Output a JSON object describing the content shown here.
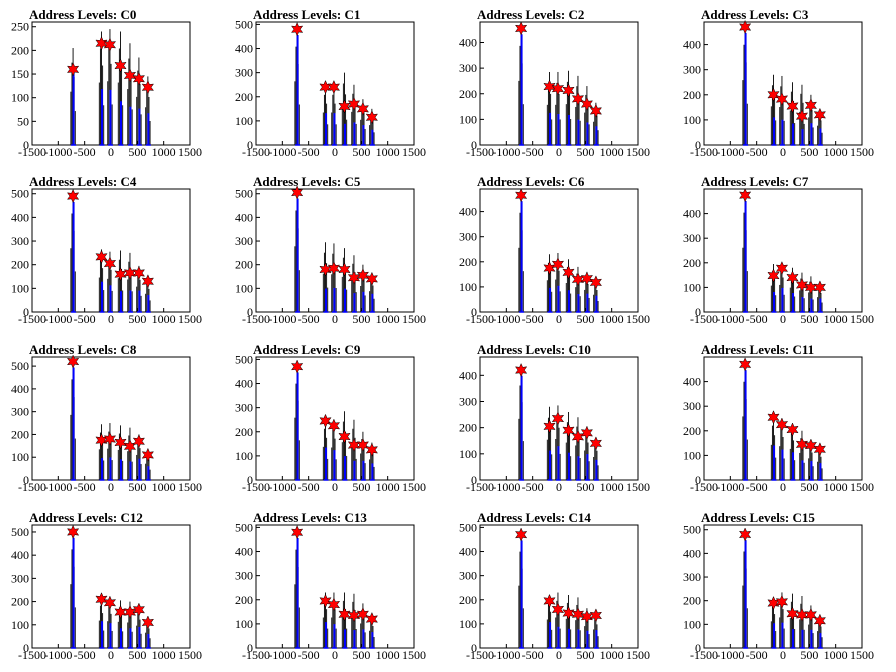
{
  "colors": {
    "histogram": "#000000",
    "fit": "#0000ff",
    "peak_marker": "#ff0000",
    "frame": "#000000"
  },
  "chart_data": [
    {
      "type": "bar",
      "title": "Address Levels: C0",
      "xlim": [
        -1500,
        1500
      ],
      "ylim": [
        0,
        260
      ],
      "yticks": [
        0,
        50,
        100,
        150,
        200,
        250
      ],
      "xticks": [
        -1500,
        -1000,
        -500,
        0,
        500,
        1000,
        1500
      ],
      "xtick_labels": [
        "-1500",
        "-1000",
        "-500",
        "0",
        "500",
        "1000",
        "1500"
      ],
      "peaks": [
        {
          "x": -720,
          "y": 160
        },
        {
          "x": -180,
          "y": 215
        },
        {
          "x": -20,
          "y": 212
        },
        {
          "x": 180,
          "y": 168
        },
        {
          "x": 360,
          "y": 147
        },
        {
          "x": 530,
          "y": 140
        },
        {
          "x": 700,
          "y": 122
        }
      ],
      "histogram_peaks": [
        205,
        240,
        245,
        240,
        215,
        185,
        145
      ]
    },
    {
      "type": "bar",
      "title": "Address Levels: C1",
      "xlim": [
        -1500,
        1500
      ],
      "ylim": [
        0,
        510
      ],
      "yticks": [
        0,
        100,
        200,
        300,
        400,
        500
      ],
      "xticks": [
        -1500,
        -1000,
        -500,
        0,
        500,
        1000,
        1500
      ],
      "xtick_labels": [
        "-1500",
        "-1000",
        "-500",
        "0",
        "500",
        "1000",
        "1500"
      ],
      "peaks": [
        {
          "x": -720,
          "y": 480
        },
        {
          "x": -180,
          "y": 240
        },
        {
          "x": -20,
          "y": 240
        },
        {
          "x": 180,
          "y": 160
        },
        {
          "x": 360,
          "y": 170
        },
        {
          "x": 530,
          "y": 150
        },
        {
          "x": 700,
          "y": 115
        }
      ],
      "histogram_peaks": [
        480,
        245,
        245,
        300,
        250,
        190,
        150
      ]
    },
    {
      "type": "bar",
      "title": "Address Levels: C2",
      "xlim": [
        -1500,
        1500
      ],
      "ylim": [
        0,
        480
      ],
      "yticks": [
        0,
        100,
        200,
        300,
        400
      ],
      "xticks": [
        -1500,
        -1000,
        -500,
        0,
        500,
        1000,
        1500
      ],
      "xtick_labels": [
        "-1500",
        "-1000",
        "-500",
        "0",
        "500",
        "1000",
        "1500"
      ],
      "peaks": [
        {
          "x": -720,
          "y": 455
        },
        {
          "x": -180,
          "y": 228
        },
        {
          "x": -20,
          "y": 220
        },
        {
          "x": 180,
          "y": 213
        },
        {
          "x": 360,
          "y": 180
        },
        {
          "x": 530,
          "y": 160
        },
        {
          "x": 700,
          "y": 133
        }
      ],
      "histogram_peaks": [
        455,
        285,
        285,
        290,
        270,
        230,
        165
      ]
    },
    {
      "type": "bar",
      "title": "Address Levels: C3",
      "xlim": [
        -1500,
        1500
      ],
      "ylim": [
        0,
        490
      ],
      "yticks": [
        0,
        100,
        200,
        300,
        400
      ],
      "xticks": [
        -1500,
        -1000,
        -500,
        0,
        500,
        1000,
        1500
      ],
      "xtick_labels": [
        "-1500",
        "-1000",
        "-500",
        "0",
        "500",
        "1000",
        "1500"
      ],
      "peaks": [
        {
          "x": -720,
          "y": 470
        },
        {
          "x": -180,
          "y": 200
        },
        {
          "x": -20,
          "y": 183
        },
        {
          "x": 180,
          "y": 155
        },
        {
          "x": 360,
          "y": 115
        },
        {
          "x": 530,
          "y": 158
        },
        {
          "x": 700,
          "y": 120
        }
      ],
      "histogram_peaks": [
        470,
        280,
        275,
        250,
        240,
        200,
        140
      ]
    },
    {
      "type": "bar",
      "title": "Address Levels: C4",
      "xlim": [
        -1500,
        1500
      ],
      "ylim": [
        0,
        520
      ],
      "yticks": [
        0,
        100,
        200,
        300,
        400,
        500
      ],
      "xticks": [
        -1500,
        -1000,
        -500,
        0,
        500,
        1000,
        1500
      ],
      "xtick_labels": [
        "-1500",
        "-1000",
        "-500",
        "0",
        "500",
        "1000",
        "1500"
      ],
      "peaks": [
        {
          "x": -720,
          "y": 490
        },
        {
          "x": -180,
          "y": 233
        },
        {
          "x": -20,
          "y": 205
        },
        {
          "x": 180,
          "y": 160
        },
        {
          "x": 360,
          "y": 165
        },
        {
          "x": 530,
          "y": 165
        },
        {
          "x": 700,
          "y": 130
        }
      ],
      "histogram_peaks": [
        490,
        265,
        255,
        260,
        250,
        195,
        140
      ]
    },
    {
      "type": "bar",
      "title": "Address Levels: C5",
      "xlim": [
        -1500,
        1500
      ],
      "ylim": [
        0,
        520
      ],
      "yticks": [
        0,
        100,
        200,
        300,
        400,
        500
      ],
      "xticks": [
        -1500,
        -1000,
        -500,
        0,
        500,
        1000,
        1500
      ],
      "xtick_labels": [
        "-1500",
        "-1000",
        "-500",
        "0",
        "500",
        "1000",
        "1500"
      ],
      "peaks": [
        {
          "x": -720,
          "y": 505
        },
        {
          "x": -180,
          "y": 180
        },
        {
          "x": -20,
          "y": 185
        },
        {
          "x": 180,
          "y": 180
        },
        {
          "x": 360,
          "y": 145
        },
        {
          "x": 530,
          "y": 155
        },
        {
          "x": 700,
          "y": 140
        }
      ],
      "histogram_peaks": [
        505,
        295,
        290,
        270,
        240,
        200,
        160
      ]
    },
    {
      "type": "bar",
      "title": "Address Levels: C6",
      "xlim": [
        -1500,
        1500
      ],
      "ylim": [
        0,
        490
      ],
      "yticks": [
        0,
        100,
        200,
        300,
        400
      ],
      "xticks": [
        -1500,
        -1000,
        -500,
        0,
        500,
        1000,
        1500
      ],
      "xtick_labels": [
        "-1500",
        "-1000",
        "-500",
        "0",
        "500",
        "1000",
        "1500"
      ],
      "peaks": [
        {
          "x": -720,
          "y": 465
        },
        {
          "x": -180,
          "y": 175
        },
        {
          "x": -20,
          "y": 190
        },
        {
          "x": 180,
          "y": 158
        },
        {
          "x": 360,
          "y": 130
        },
        {
          "x": 530,
          "y": 133
        },
        {
          "x": 700,
          "y": 118
        }
      ],
      "histogram_peaks": [
        465,
        230,
        235,
        210,
        180,
        160,
        125
      ]
    },
    {
      "type": "bar",
      "title": "Address Levels: C7",
      "xlim": [
        -1500,
        1500
      ],
      "ylim": [
        0,
        500
      ],
      "yticks": [
        0,
        100,
        200,
        300,
        400
      ],
      "xticks": [
        -1500,
        -1000,
        -500,
        0,
        500,
        1000,
        1500
      ],
      "xtick_labels": [
        "-1500",
        "-1000",
        "-500",
        "0",
        "500",
        "1000",
        "1500"
      ],
      "peaks": [
        {
          "x": -720,
          "y": 475
        },
        {
          "x": -180,
          "y": 148
        },
        {
          "x": -20,
          "y": 178
        },
        {
          "x": 180,
          "y": 140
        },
        {
          "x": 360,
          "y": 110
        },
        {
          "x": 530,
          "y": 100
        },
        {
          "x": 700,
          "y": 100
        }
      ],
      "histogram_peaks": [
        475,
        195,
        200,
        180,
        160,
        145,
        110
      ]
    },
    {
      "type": "bar",
      "title": "Address Levels: C8",
      "xlim": [
        -1500,
        1500
      ],
      "ylim": [
        0,
        540
      ],
      "yticks": [
        0,
        100,
        200,
        300,
        400,
        500
      ],
      "xticks": [
        -1500,
        -1000,
        -500,
        0,
        500,
        1000,
        1500
      ],
      "xtick_labels": [
        "-1500",
        "-1000",
        "-500",
        "0",
        "500",
        "1000",
        "1500"
      ],
      "peaks": [
        {
          "x": -720,
          "y": 520
        },
        {
          "x": -180,
          "y": 175
        },
        {
          "x": -20,
          "y": 180
        },
        {
          "x": 180,
          "y": 165
        },
        {
          "x": 360,
          "y": 148
        },
        {
          "x": 530,
          "y": 170
        },
        {
          "x": 700,
          "y": 110
        }
      ],
      "histogram_peaks": [
        520,
        245,
        250,
        240,
        230,
        200,
        130
      ]
    },
    {
      "type": "bar",
      "title": "Address Levels: C9",
      "xlim": [
        -1500,
        1500
      ],
      "ylim": [
        0,
        510
      ],
      "yticks": [
        0,
        100,
        200,
        300,
        400,
        500
      ],
      "xticks": [
        -1500,
        -1000,
        -500,
        0,
        500,
        1000,
        1500
      ],
      "xtick_labels": [
        "-1500",
        "-1000",
        "-500",
        "0",
        "500",
        "1000",
        "1500"
      ],
      "peaks": [
        {
          "x": -720,
          "y": 470
        },
        {
          "x": -180,
          "y": 245
        },
        {
          "x": -20,
          "y": 225
        },
        {
          "x": 180,
          "y": 180
        },
        {
          "x": 360,
          "y": 145
        },
        {
          "x": 530,
          "y": 145
        },
        {
          "x": 700,
          "y": 125
        }
      ],
      "histogram_peaks": [
        470,
        250,
        245,
        285,
        250,
        200,
        155
      ]
    },
    {
      "type": "bar",
      "title": "Address Levels: C10",
      "xlim": [
        -1500,
        1500
      ],
      "ylim": [
        0,
        470
      ],
      "yticks": [
        0,
        100,
        200,
        300,
        400
      ],
      "xticks": [
        -1500,
        -1000,
        -500,
        0,
        500,
        1000,
        1500
      ],
      "xtick_labels": [
        "-1500",
        "-1000",
        "-500",
        "0",
        "500",
        "1000",
        "1500"
      ],
      "peaks": [
        {
          "x": -720,
          "y": 420
        },
        {
          "x": -180,
          "y": 205
        },
        {
          "x": -20,
          "y": 235
        },
        {
          "x": 180,
          "y": 190
        },
        {
          "x": 360,
          "y": 165
        },
        {
          "x": 530,
          "y": 180
        },
        {
          "x": 700,
          "y": 140
        }
      ],
      "histogram_peaks": [
        425,
        280,
        285,
        260,
        240,
        205,
        160
      ]
    },
    {
      "type": "bar",
      "title": "Address Levels: C11",
      "xlim": [
        -1500,
        1500
      ],
      "ylim": [
        0,
        500
      ],
      "yticks": [
        0,
        100,
        200,
        300,
        400
      ],
      "xticks": [
        -1500,
        -1000,
        -500,
        0,
        500,
        1000,
        1500
      ],
      "xtick_labels": [
        "-1500",
        "-1000",
        "-500",
        "0",
        "500",
        "1000",
        "1500"
      ],
      "peaks": [
        {
          "x": -720,
          "y": 470
        },
        {
          "x": -180,
          "y": 255
        },
        {
          "x": -20,
          "y": 225
        },
        {
          "x": 180,
          "y": 205
        },
        {
          "x": 360,
          "y": 145
        },
        {
          "x": 530,
          "y": 140
        },
        {
          "x": 700,
          "y": 125
        }
      ],
      "histogram_peaks": [
        470,
        260,
        250,
        230,
        200,
        160,
        135
      ]
    },
    {
      "type": "bar",
      "title": "Address Levels: C12",
      "xlim": [
        -1500,
        1500
      ],
      "ylim": [
        0,
        530
      ],
      "yticks": [
        0,
        100,
        200,
        300,
        400,
        500
      ],
      "xticks": [
        -1500,
        -1000,
        -500,
        0,
        500,
        1000,
        1500
      ],
      "xtick_labels": [
        "-1500",
        "-1000",
        "-500",
        "0",
        "500",
        "1000",
        "1500"
      ],
      "peaks": [
        {
          "x": -720,
          "y": 500
        },
        {
          "x": -180,
          "y": 210
        },
        {
          "x": -20,
          "y": 195
        },
        {
          "x": 180,
          "y": 155
        },
        {
          "x": 360,
          "y": 155
        },
        {
          "x": 530,
          "y": 165
        },
        {
          "x": 700,
          "y": 110
        }
      ],
      "histogram_peaks": [
        500,
        215,
        210,
        205,
        200,
        175,
        120
      ]
    },
    {
      "type": "bar",
      "title": "Address Levels: C13",
      "xlim": [
        -1500,
        1500
      ],
      "ylim": [
        0,
        510
      ],
      "yticks": [
        0,
        100,
        200,
        300,
        400,
        500
      ],
      "xticks": [
        -1500,
        -1000,
        -500,
        0,
        500,
        1000,
        1500
      ],
      "xtick_labels": [
        "-1500",
        "-1000",
        "-500",
        "0",
        "500",
        "1000",
        "1500"
      ],
      "peaks": [
        {
          "x": -720,
          "y": 480
        },
        {
          "x": -180,
          "y": 195
        },
        {
          "x": -20,
          "y": 180
        },
        {
          "x": 180,
          "y": 140
        },
        {
          "x": 360,
          "y": 135
        },
        {
          "x": 530,
          "y": 140
        },
        {
          "x": 700,
          "y": 120
        }
      ],
      "histogram_peaks": [
        480,
        230,
        230,
        230,
        225,
        185,
        130
      ]
    },
    {
      "type": "bar",
      "title": "Address Levels: C14",
      "xlim": [
        -1500,
        1500
      ],
      "ylim": [
        0,
        510
      ],
      "yticks": [
        0,
        100,
        200,
        300,
        400,
        500
      ],
      "xticks": [
        -1500,
        -1000,
        -500,
        0,
        500,
        1000,
        1500
      ],
      "xtick_labels": [
        "-1500",
        "-1000",
        "-500",
        "0",
        "500",
        "1000",
        "1500"
      ],
      "peaks": [
        {
          "x": -720,
          "y": 470
        },
        {
          "x": -180,
          "y": 195
        },
        {
          "x": -20,
          "y": 160
        },
        {
          "x": 180,
          "y": 145
        },
        {
          "x": 360,
          "y": 140
        },
        {
          "x": 530,
          "y": 130
        },
        {
          "x": 700,
          "y": 135
        }
      ],
      "histogram_peaks": [
        470,
        215,
        230,
        220,
        210,
        165,
        140
      ]
    },
    {
      "type": "bar",
      "title": "Address Levels: C15",
      "xlim": [
        -1500,
        1500
      ],
      "ylim": [
        0,
        520
      ],
      "yticks": [
        0,
        100,
        200,
        300,
        400,
        500
      ],
      "xticks": [
        -1500,
        -1000,
        -500,
        0,
        500,
        1000,
        1500
      ],
      "xtick_labels": [
        "-1500",
        "-1000",
        "-500",
        "0",
        "500",
        "1000",
        "1500"
      ],
      "peaks": [
        {
          "x": -720,
          "y": 480
        },
        {
          "x": -180,
          "y": 190
        },
        {
          "x": -20,
          "y": 195
        },
        {
          "x": 180,
          "y": 145
        },
        {
          "x": 360,
          "y": 140
        },
        {
          "x": 530,
          "y": 140
        },
        {
          "x": 700,
          "y": 115
        }
      ],
      "histogram_peaks": [
        480,
        205,
        235,
        230,
        220,
        180,
        130
      ]
    }
  ]
}
